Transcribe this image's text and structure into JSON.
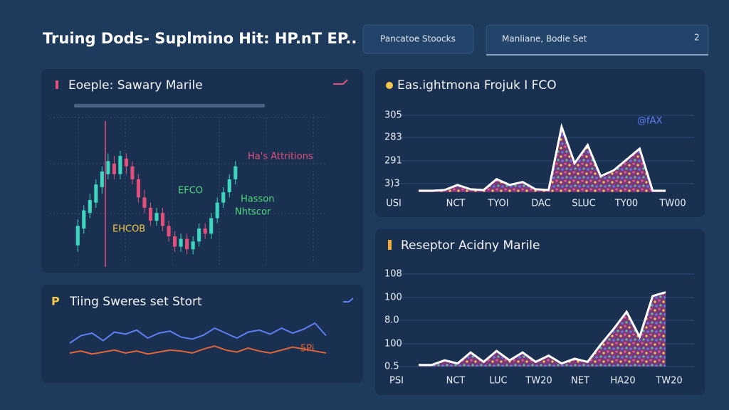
{
  "header": {
    "title": "Truing Dods- Suplmino Hit: HP.nT EP..",
    "button": "Pancatoe Stoocks",
    "dropdown": "Manliane, Bodie Set",
    "dropdown_badge": "2"
  },
  "panels": [
    {
      "title": "Eoeple: Sawary Marile",
      "type": "candlestick",
      "candles": [
        [
          15,
          30,
          35,
          10
        ],
        [
          28,
          42,
          46,
          24
        ],
        [
          40,
          50,
          55,
          36
        ],
        [
          48,
          62,
          66,
          44
        ],
        [
          60,
          72,
          76,
          55
        ],
        [
          70,
          80,
          86,
          66
        ],
        [
          78,
          70,
          84,
          66
        ],
        [
          70,
          84,
          88,
          66
        ],
        [
          82,
          76,
          86,
          70
        ],
        [
          76,
          66,
          80,
          62
        ],
        [
          66,
          52,
          70,
          48
        ],
        [
          52,
          44,
          58,
          40
        ],
        [
          44,
          34,
          48,
          30
        ],
        [
          34,
          40,
          44,
          30
        ],
        [
          40,
          30,
          44,
          26
        ],
        [
          30,
          22,
          34,
          18
        ],
        [
          22,
          14,
          26,
          10
        ],
        [
          14,
          20,
          24,
          10
        ],
        [
          20,
          12,
          24,
          8
        ],
        [
          12,
          18,
          22,
          8
        ],
        [
          18,
          28,
          32,
          14
        ],
        [
          28,
          24,
          32,
          20
        ],
        [
          24,
          36,
          40,
          20
        ],
        [
          36,
          48,
          52,
          32
        ],
        [
          48,
          56,
          60,
          44
        ],
        [
          56,
          66,
          70,
          52
        ],
        [
          66,
          76,
          80,
          62
        ]
      ],
      "up_color": "#3fd6c0",
      "down_color": "#e0507a",
      "annotations": [
        "Ha's Attritions",
        "EFCO",
        "Hasson",
        "Nhtscor",
        "EHCOB"
      ]
    },
    {
      "title": "Tiing Sweres set Stort",
      "type": "line",
      "series": [
        {
          "color": "#5d7df2",
          "values": [
            40,
            55,
            60,
            45,
            62,
            58,
            66,
            50,
            60,
            64,
            52,
            48,
            56,
            70,
            60,
            50,
            62,
            66,
            58,
            70,
            60,
            68,
            80,
            55
          ]
        },
        {
          "color": "#e0653a",
          "values": [
            20,
            24,
            18,
            22,
            26,
            20,
            24,
            18,
            22,
            26,
            24,
            20,
            28,
            34,
            26,
            22,
            30,
            24,
            20,
            26,
            32,
            28,
            24,
            20
          ]
        }
      ],
      "annotations": [
        "5Pi"
      ]
    },
    {
      "title": "Eas.ightmona Frojuk I FCO",
      "type": "area",
      "y_labels": [
        "305",
        "283",
        "291",
        "3)3"
      ],
      "x_labels": [
        "USI",
        "NCT",
        "TYOI",
        "DAC",
        "SLUC",
        "TY00",
        "TW00"
      ],
      "values": [
        2,
        2,
        3,
        10,
        4,
        3,
        18,
        10,
        14,
        4,
        3,
        90,
        40,
        65,
        22,
        30,
        45,
        60,
        2,
        2
      ],
      "annotations": [
        "@fAX"
      ]
    },
    {
      "title": "Reseptor Acidny Marile",
      "type": "area",
      "y_labels": [
        "108",
        "100",
        "8.0",
        "100",
        "0.5"
      ],
      "x_labels": [
        "PSI",
        "NCT",
        "LUC",
        "TW20",
        "NET",
        "HA20",
        "TW20"
      ],
      "values": [
        2,
        2,
        8,
        4,
        18,
        6,
        20,
        8,
        18,
        6,
        14,
        4,
        10,
        6,
        28,
        48,
        70,
        38,
        90,
        95
      ]
    }
  ]
}
